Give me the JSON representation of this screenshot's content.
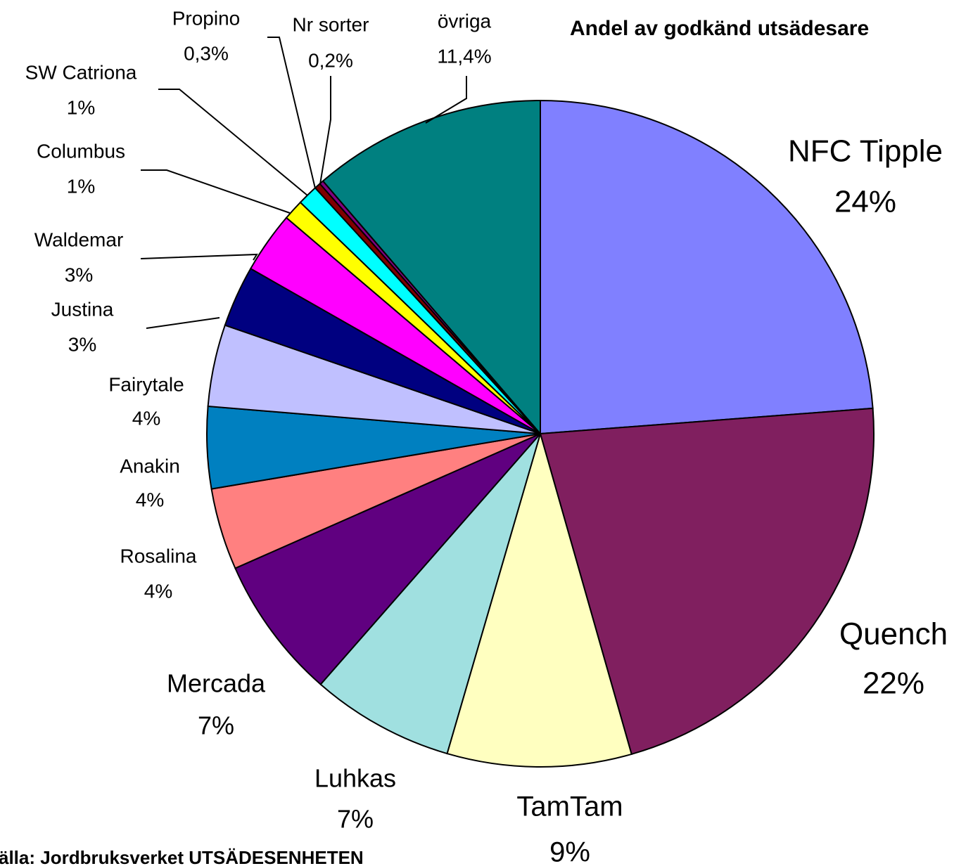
{
  "chart_data": {
    "type": "pie",
    "title": "Andel av godkänd utsädesare",
    "source": "älla: Jordbruksverket UTSÄDESENHETEN",
    "categories": [
      "NFC Tipple",
      "Quench",
      "TamTam",
      "Luhkas",
      "Mercada",
      "Rosalina",
      "Anakin",
      "Fairytale",
      "Justina",
      "Waldemar",
      "Columbus",
      "SW Catriona",
      "Propino",
      "Nr sorter",
      "övriga"
    ],
    "values": [
      24,
      22,
      9,
      7,
      7,
      4,
      4,
      4,
      3,
      3,
      1,
      1,
      0.3,
      0.2,
      11.4
    ],
    "value_labels": [
      "24%",
      "22%",
      "9%",
      "7%",
      "7%",
      "4%",
      "4%",
      "4%",
      "3%",
      "3%",
      "1%",
      "1%",
      "0,3%",
      "0,2%",
      "11,4%"
    ],
    "colors": [
      "#8080ff",
      "#801f5f",
      "#ffffc0",
      "#a0e0e0",
      "#600080",
      "#ff8080",
      "#0080c0",
      "#c0c0ff",
      "#000080",
      "#ff00ff",
      "#ffff00",
      "#00ffff",
      "#800000",
      "#800080",
      "#008080"
    ]
  }
}
